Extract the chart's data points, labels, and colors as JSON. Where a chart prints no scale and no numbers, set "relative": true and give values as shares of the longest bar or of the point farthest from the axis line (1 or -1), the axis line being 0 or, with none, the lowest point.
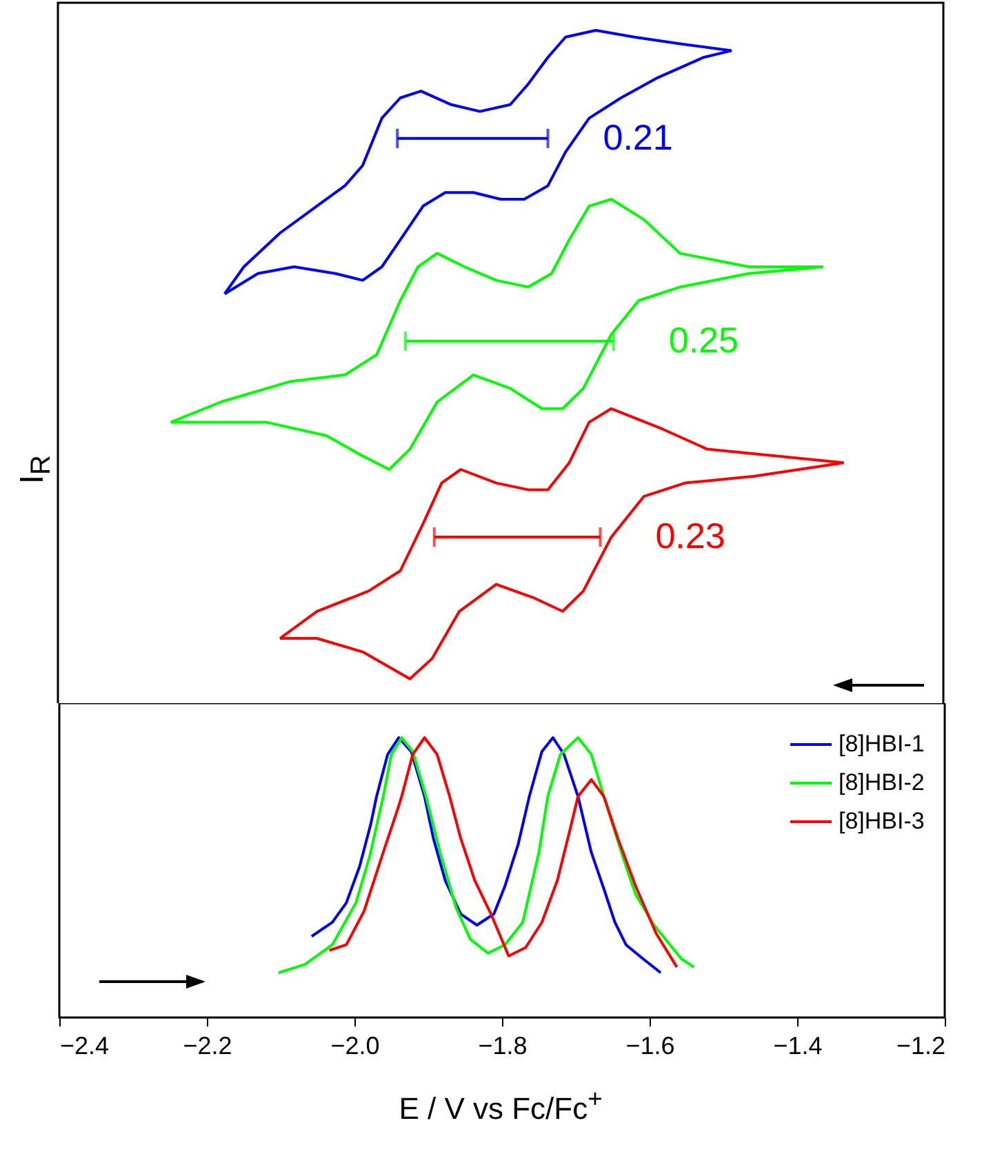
{
  "chart_data": [
    {
      "type": "line",
      "relative": true,
      "xlim": [
        -2.4,
        -1.2
      ],
      "xticks": [
        -2.4,
        -2.2,
        -2.0,
        -1.8,
        -1.6,
        -1.4,
        -1.2
      ],
      "tick_labels": false,
      "ylabel": "I$_{R}$",
      "series": [
        {
          "color": "#0000ff",
          "x": [
            -1.487,
            -1.557,
            -1.619,
            -1.671,
            -1.712,
            -1.736,
            -1.763,
            -1.787,
            -1.828,
            -1.867,
            -1.908,
            -1.936,
            -1.961,
            -1.987,
            -2.011,
            -2.049,
            -2.099,
            -2.148,
            -2.174
          ],
          "values": [
            0.97,
            0.98,
            0.99,
            1.0,
            0.99,
            0.96,
            0.92,
            0.89,
            0.88,
            0.89,
            0.91,
            0.9,
            0.87,
            0.8,
            0.77,
            0.74,
            0.7,
            0.65,
            0.61
          ]
        },
        {
          "color": "#0000ff",
          "x": [
            -2.174,
            -2.129,
            -2.08,
            -2.024,
            -1.987,
            -1.961,
            -1.936,
            -1.905,
            -1.875,
            -1.837,
            -1.8,
            -1.768,
            -1.736,
            -1.712,
            -1.68,
            -1.637,
            -1.587,
            -1.525,
            -1.487
          ],
          "values": [
            0.61,
            0.64,
            0.65,
            0.64,
            0.63,
            0.65,
            0.69,
            0.74,
            0.76,
            0.76,
            0.75,
            0.75,
            0.77,
            0.82,
            0.87,
            0.9,
            0.93,
            0.96,
            0.97
          ]
        },
        {
          "color": "#00ff00",
          "x": [
            -1.363,
            -1.464,
            -1.557,
            -1.606,
            -1.65,
            -1.68,
            -1.707,
            -1.731,
            -1.763,
            -1.806,
            -1.849,
            -1.886,
            -1.912,
            -1.936,
            -1.968,
            -2.011,
            -2.086,
            -2.179,
            -2.247
          ],
          "values": [
            0.65,
            0.65,
            0.67,
            0.72,
            0.75,
            0.74,
            0.69,
            0.64,
            0.62,
            0.63,
            0.65,
            0.67,
            0.65,
            0.6,
            0.52,
            0.49,
            0.48,
            0.45,
            0.42
          ]
        },
        {
          "color": "#00ff00",
          "x": [
            -2.247,
            -2.179,
            -2.118,
            -2.036,
            -1.987,
            -1.951,
            -1.923,
            -1.886,
            -1.837,
            -1.787,
            -1.744,
            -1.716,
            -1.688,
            -1.65,
            -1.613,
            -1.557,
            -1.464,
            -1.363
          ],
          "values": [
            0.42,
            0.42,
            0.42,
            0.4,
            0.37,
            0.35,
            0.38,
            0.45,
            0.49,
            0.47,
            0.44,
            0.44,
            0.47,
            0.55,
            0.6,
            0.62,
            0.64,
            0.65
          ]
        },
        {
          "color": "#ff0000",
          "x": [
            -1.335,
            -1.426,
            -1.52,
            -1.581,
            -1.65,
            -1.68,
            -1.707,
            -1.736,
            -1.763,
            -1.806,
            -1.854,
            -1.88,
            -1.905,
            -1.936,
            -1.979,
            -2.049,
            -2.099
          ],
          "values": [
            0.36,
            0.37,
            0.38,
            0.41,
            0.44,
            0.42,
            0.36,
            0.32,
            0.32,
            0.33,
            0.35,
            0.33,
            0.27,
            0.2,
            0.17,
            0.14,
            0.1
          ]
        },
        {
          "color": "#ff0000",
          "x": [
            -2.099,
            -2.049,
            -1.987,
            -1.923,
            -1.893,
            -1.856,
            -1.806,
            -1.755,
            -1.716,
            -1.688,
            -1.65,
            -1.606,
            -1.55,
            -1.456,
            -1.335
          ],
          "values": [
            0.1,
            0.1,
            0.08,
            0.04,
            0.07,
            0.14,
            0.18,
            0.16,
            0.14,
            0.17,
            0.25,
            0.31,
            0.33,
            0.34,
            0.36
          ]
        },
        {
          "color": "#0000ff",
          "x": [
            -1.94,
            -1.736
          ],
          "values": [
            0.84,
            0.84
          ]
        },
        {
          "color": "#00ff00",
          "x": [
            -1.929,
            -1.647
          ],
          "values": [
            0.54,
            0.54
          ]
        },
        {
          "color": "#ff0000",
          "x": [
            -1.89,
            -1.665
          ],
          "values": [
            0.25,
            0.25
          ]
        }
      ],
      "annotations": [
        "0.21",
        "0.25",
        "0.23"
      ]
    },
    {
      "type": "line",
      "relative": true,
      "xlim": [
        -2.4,
        -1.2
      ],
      "xticks": [
        -2.4,
        -2.2,
        {
          "value": -2.0,
          "label": "−2.0"
        },
        -1.8,
        -1.6,
        -1.4,
        -1.2
      ],
      "tick_labels": "x",
      "xlabel": "E / V vs Fc/Fc$^{+}$",
      "legend": "top right",
      "series": [
        {
          "name": "[8]HBI-1",
          "color": "#0000ff",
          "x": [
            -2.058,
            -2.03,
            -2.011,
            -1.993,
            -1.978,
            -1.97,
            -1.955,
            -1.94,
            -1.923,
            -1.905,
            -1.893,
            -1.877,
            -1.856,
            -1.834,
            -1.811,
            -1.796,
            -1.778,
            -1.763,
            -1.746,
            -1.731,
            -1.716,
            -1.697,
            -1.679,
            -1.662,
            -1.647,
            -1.632,
            -1.609,
            -1.585
          ],
          "values": [
            0.29,
            0.34,
            0.41,
            0.54,
            0.69,
            0.79,
            0.94,
            1.0,
            0.95,
            0.79,
            0.64,
            0.49,
            0.37,
            0.33,
            0.37,
            0.47,
            0.62,
            0.79,
            0.95,
            1.0,
            0.94,
            0.79,
            0.59,
            0.46,
            0.34,
            0.26,
            0.21,
            0.16
          ]
        },
        {
          "name": "[8]HBI-2",
          "color": "#00ff00",
          "x": [
            -2.103,
            -2.067,
            -2.03,
            -1.998,
            -1.979,
            -1.961,
            -1.95,
            -1.936,
            -1.921,
            -1.903,
            -1.884,
            -1.862,
            -1.843,
            -1.819,
            -1.796,
            -1.772,
            -1.75,
            -1.738,
            -1.721,
            -1.697,
            -1.679,
            -1.662,
            -1.637,
            -1.619,
            -1.594,
            -1.557,
            -1.54
          ],
          "values": [
            0.16,
            0.19,
            0.26,
            0.41,
            0.58,
            0.79,
            0.94,
            1.0,
            0.95,
            0.79,
            0.59,
            0.39,
            0.28,
            0.23,
            0.26,
            0.34,
            0.59,
            0.79,
            0.94,
            1.0,
            0.94,
            0.79,
            0.58,
            0.44,
            0.33,
            0.21,
            0.18
          ]
        },
        {
          "name": "[8]HBI-3",
          "color": "#ff0000",
          "x": [
            -2.034,
            -2.011,
            -1.987,
            -1.961,
            -1.942,
            -1.936,
            -1.921,
            -1.905,
            -1.888,
            -1.871,
            -1.856,
            -1.837,
            -1.815,
            -1.791,
            -1.768,
            -1.746,
            -1.725,
            -1.708,
            -1.697,
            -1.679,
            -1.662,
            -1.643,
            -1.619,
            -1.591,
            -1.563
          ],
          "values": [
            0.24,
            0.26,
            0.38,
            0.59,
            0.74,
            0.79,
            0.94,
            1.0,
            0.94,
            0.79,
            0.64,
            0.49,
            0.37,
            0.22,
            0.25,
            0.34,
            0.49,
            0.67,
            0.79,
            0.85,
            0.79,
            0.64,
            0.47,
            0.3,
            0.18
          ]
        }
      ]
    }
  ]
}
